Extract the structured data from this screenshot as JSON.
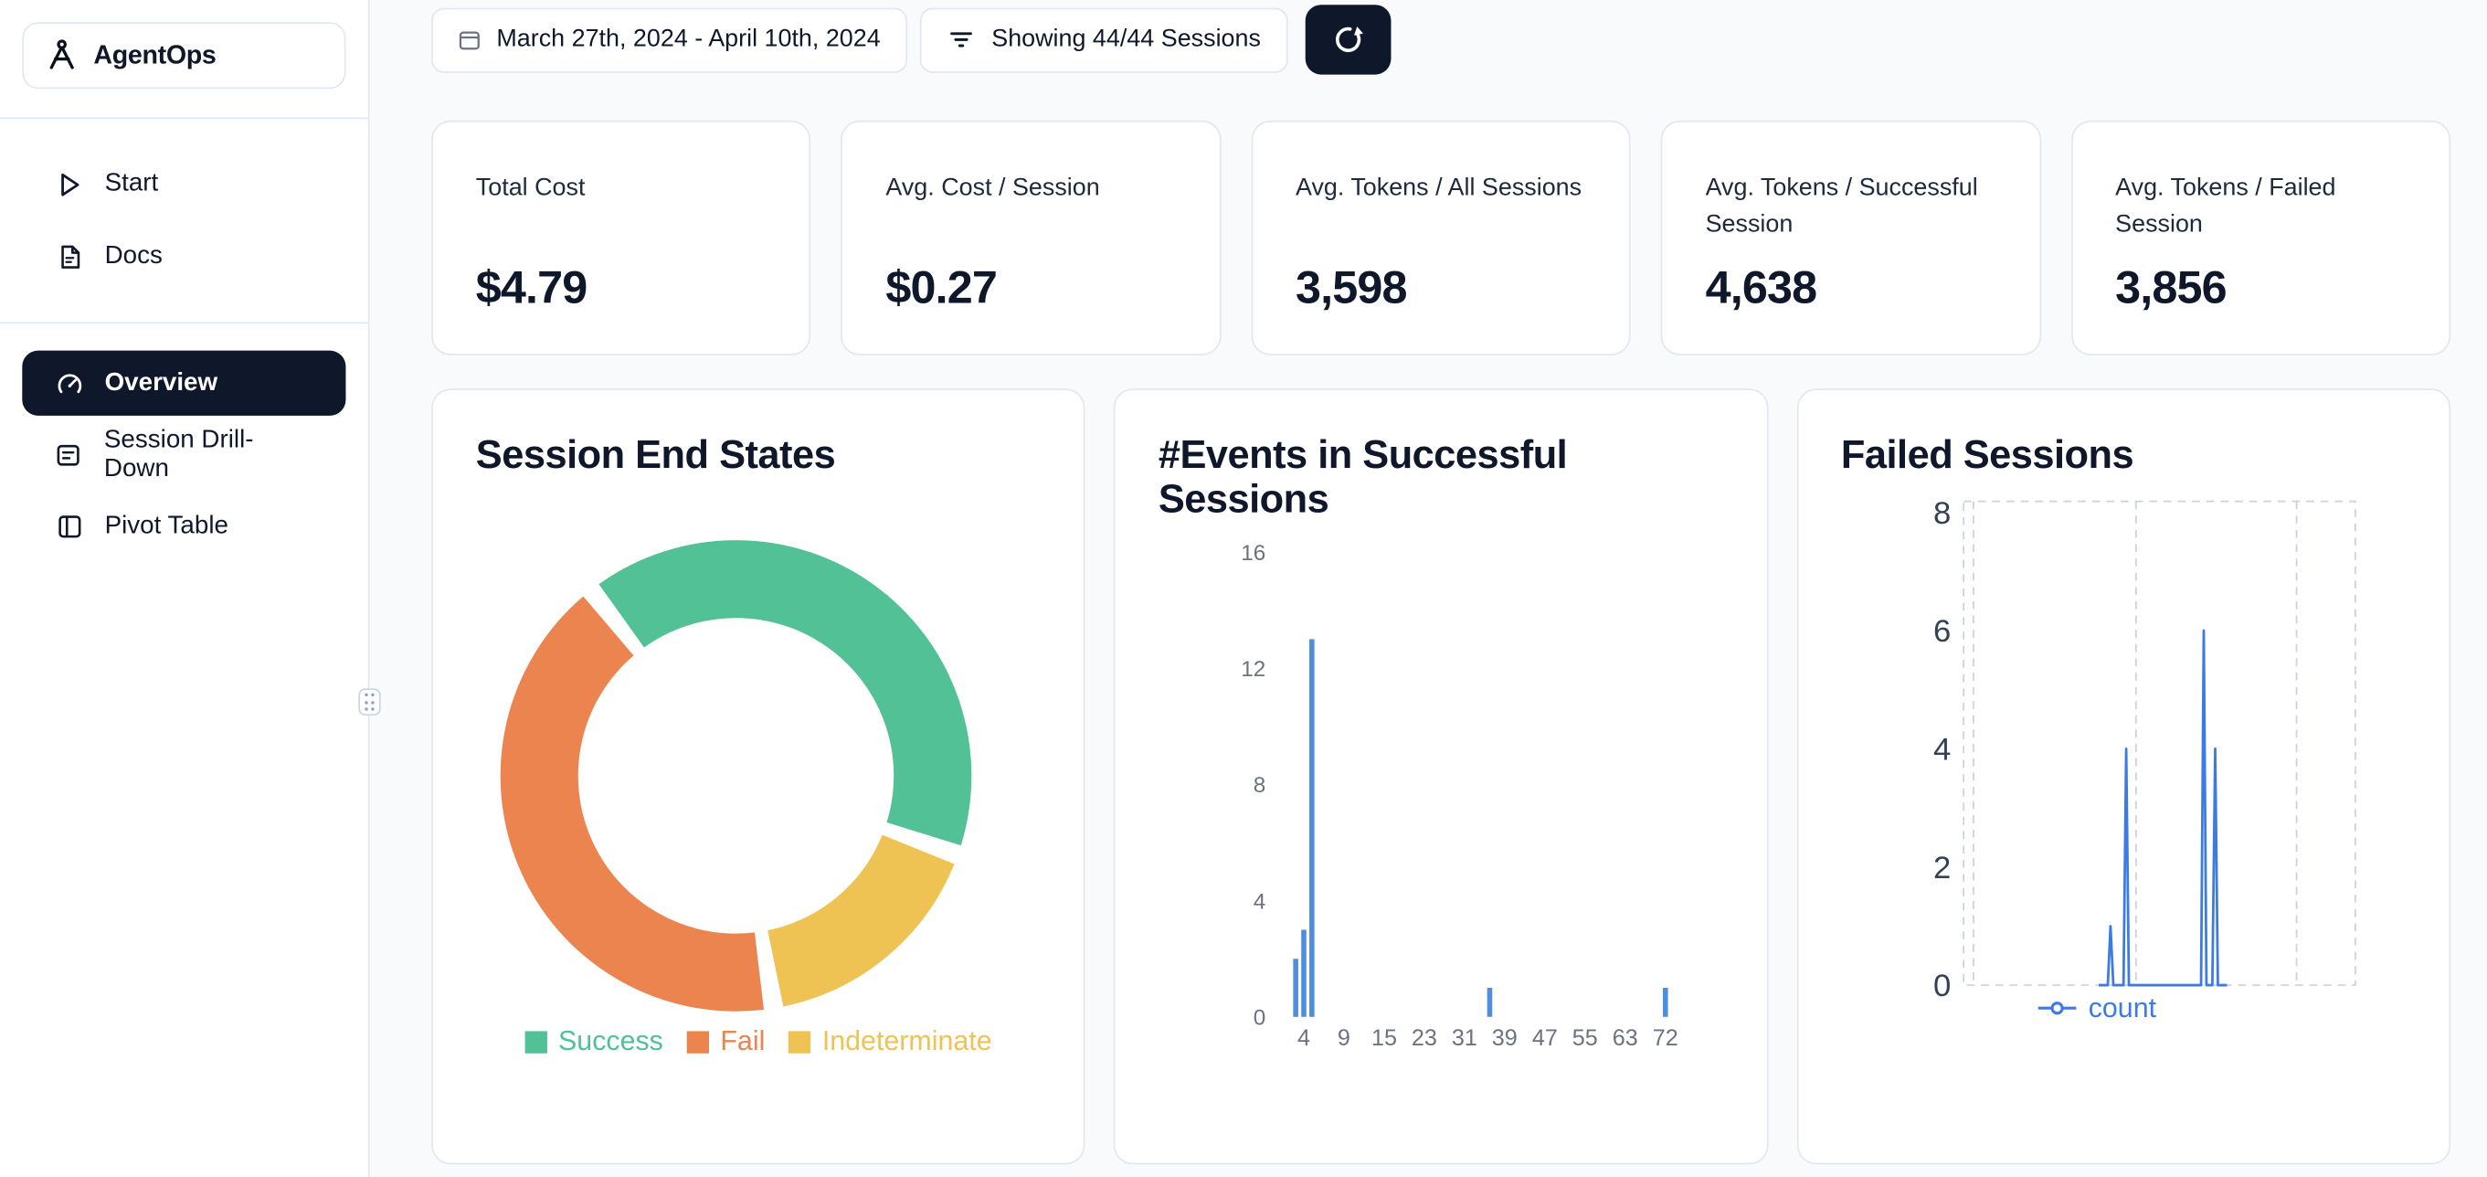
{
  "brand": {
    "name": "AgentOps"
  },
  "sidebar": {
    "top_items": [
      {
        "label": "Start"
      },
      {
        "label": "Docs"
      }
    ],
    "nav_items": [
      {
        "label": "Overview",
        "active": true
      },
      {
        "label": "Session Drill-Down",
        "active": false
      },
      {
        "label": "Pivot Table",
        "active": false
      }
    ]
  },
  "toolbar": {
    "date_range": "March 27th, 2024 - April 10th, 2024",
    "sessions_filter": "Showing 44/44 Sessions"
  },
  "stats": [
    {
      "label": "Total Cost",
      "value": "$4.79"
    },
    {
      "label": "Avg. Cost / Session",
      "value": "$0.27"
    },
    {
      "label": "Avg. Tokens / All Sessions",
      "value": "3,598"
    },
    {
      "label": "Avg. Tokens / Successful Session",
      "value": "4,638"
    },
    {
      "label": "Avg. Tokens / Failed Session",
      "value": "3,856"
    }
  ],
  "chart_data": [
    {
      "type": "pie",
      "donut": true,
      "title": "Session End States",
      "labels": [
        "Success",
        "Fail",
        "Indeterminate"
      ],
      "values": [
        41,
        42,
        17
      ],
      "unit": "percent",
      "colors": [
        "#52c196",
        "#ec8450",
        "#eec354"
      ],
      "draw_order": [
        0,
        2,
        1
      ],
      "start_angle_deg": 128,
      "legend_position": "bottom"
    },
    {
      "type": "bar",
      "title": "#Events in Successful Sessions",
      "x_ticks": [
        4,
        9,
        15,
        23,
        31,
        39,
        47,
        55,
        63,
        72
      ],
      "y_ticks": [
        0,
        4,
        8,
        12,
        16
      ],
      "ylim": [
        0,
        16
      ],
      "bars": [
        {
          "x": 3,
          "count": 2
        },
        {
          "x": 4,
          "count": 3
        },
        {
          "x": 5,
          "count": 13
        },
        {
          "x": 36,
          "count": 1
        },
        {
          "x": 72,
          "count": 1
        }
      ],
      "color": "#4e8ede",
      "axis_text_color": "#6b7280"
    },
    {
      "type": "line",
      "title": "Failed Sessions",
      "y_ticks": [
        0,
        2,
        4,
        6,
        8
      ],
      "ylim": [
        0,
        8
      ],
      "grid": "dashed",
      "series": [
        {
          "name": "count",
          "color": "#3d7be4",
          "points": [
            {
              "pos": 0.375,
              "value": 1
            },
            {
              "pos": 0.415,
              "value": 4
            },
            {
              "pos": 0.613,
              "value": 6
            },
            {
              "pos": 0.642,
              "value": 4
            }
          ]
        }
      ],
      "axis_text_color": "#334155",
      "legend_position": "bottom"
    }
  ]
}
